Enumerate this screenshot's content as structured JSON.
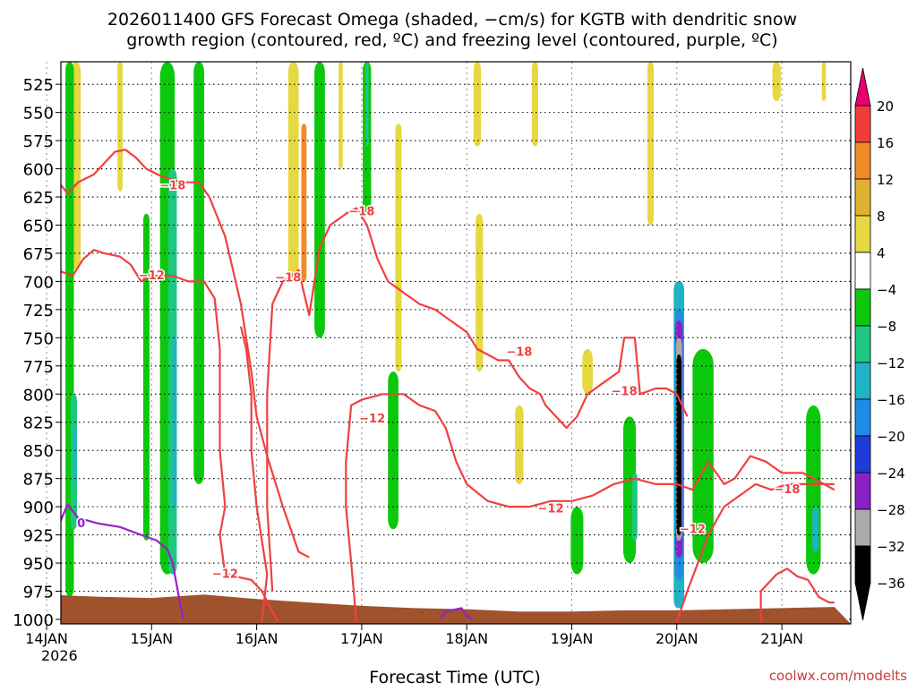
{
  "chart_data": {
    "type": "heatmap",
    "title_line1": "2026011400 GFS Forecast Omega (shaded, −cm/s) for KGTB with dendritic snow",
    "title_line2": "growth region (contoured, red, ºC) and freezing level (contoured, purple, ºC)",
    "xlabel": "Forecast Time (UTC)",
    "watermark": "coolwx.com/modelts",
    "x_ticks": [
      {
        "label": "14JAN",
        "day": 0
      },
      {
        "label": "15JAN",
        "day": 1
      },
      {
        "label": "16JAN",
        "day": 2
      },
      {
        "label": "17JAN",
        "day": 3
      },
      {
        "label": "18JAN",
        "day": 4
      },
      {
        "label": "19JAN",
        "day": 5
      },
      {
        "label": "20JAN",
        "day": 6
      },
      {
        "label": "21JAN",
        "day": 7
      }
    ],
    "x_year_label": "2026",
    "xlim": [
      0,
      7.5
    ],
    "y_ticks": [
      "525",
      "550",
      "575",
      "600",
      "625",
      "650",
      "675",
      "700",
      "725",
      "750",
      "775",
      "800",
      "825",
      "850",
      "875",
      "900",
      "925",
      "950",
      "975",
      "1000"
    ],
    "ylim": [
      505,
      1004
    ],
    "colorbar": {
      "labels": [
        "20",
        "16",
        "12",
        "8",
        "4",
        "−4",
        "−8",
        "−12",
        "−16",
        "−20",
        "−24",
        "−28",
        "−32",
        "−36"
      ],
      "colors": [
        "#e8006e",
        "#f23c3c",
        "#f28a28",
        "#e0b030",
        "#e6d840",
        "#ffffff",
        "#0cc80c",
        "#1ec882",
        "#1eb4c8",
        "#1e8ce6",
        "#1e3cdc",
        "#8c1ec8",
        "#aaaaaa",
        "#000000",
        "#000000"
      ],
      "top_arrow_color": "#e8006e",
      "bottom_arrow_color": "#000000"
    },
    "omega_blobs": [
      {
        "day": 0.28,
        "p0": 505,
        "p1": 690,
        "w": 0.09,
        "color": "#e6d840"
      },
      {
        "day": 0.22,
        "p0": 505,
        "p1": 980,
        "w": 0.08,
        "color": "#0cc80c"
      },
      {
        "day": 0.26,
        "p0": 800,
        "p1": 920,
        "w": 0.06,
        "color": "#1ec882"
      },
      {
        "day": 0.27,
        "p0": 830,
        "p1": 880,
        "w": 0.03,
        "color": "#1eb4c8"
      },
      {
        "day": 0.05,
        "p0": 730,
        "p1": 900,
        "w": 0.06,
        "color": "#0cc80c"
      },
      {
        "day": 1.15,
        "p0": 505,
        "p1": 960,
        "w": 0.14,
        "color": "#0cc80c"
      },
      {
        "day": 1.2,
        "p0": 600,
        "p1": 960,
        "w": 0.08,
        "color": "#1ec882"
      },
      {
        "day": 1.22,
        "p0": 750,
        "p1": 900,
        "w": 0.04,
        "color": "#1eb4c8"
      },
      {
        "day": 1.45,
        "p0": 505,
        "p1": 880,
        "w": 0.1,
        "color": "#0cc80c"
      },
      {
        "day": 0.95,
        "p0": 640,
        "p1": 930,
        "w": 0.06,
        "color": "#0cc80c"
      },
      {
        "day": 0.7,
        "p0": 505,
        "p1": 620,
        "w": 0.05,
        "color": "#e6d840"
      },
      {
        "day": 2.35,
        "p0": 505,
        "p1": 700,
        "w": 0.1,
        "color": "#e6d840"
      },
      {
        "day": 2.45,
        "p0": 560,
        "p1": 700,
        "w": 0.05,
        "color": "#f28a28"
      },
      {
        "day": 2.6,
        "p0": 505,
        "p1": 750,
        "w": 0.1,
        "color": "#0cc80c"
      },
      {
        "day": 2.8,
        "p0": 505,
        "p1": 600,
        "w": 0.04,
        "color": "#e6d840"
      },
      {
        "day": 3.05,
        "p0": 505,
        "p1": 640,
        "w": 0.08,
        "color": "#0cc80c"
      },
      {
        "day": 3.05,
        "p0": 505,
        "p1": 580,
        "w": 0.03,
        "color": "#1ec882"
      },
      {
        "day": 3.3,
        "p0": 780,
        "p1": 920,
        "w": 0.1,
        "color": "#0cc80c"
      },
      {
        "day": 3.35,
        "p0": 560,
        "p1": 780,
        "w": 0.06,
        "color": "#e6d840"
      },
      {
        "day": 4.1,
        "p0": 505,
        "p1": 580,
        "w": 0.07,
        "color": "#e6d840"
      },
      {
        "day": 4.12,
        "p0": 640,
        "p1": 780,
        "w": 0.07,
        "color": "#e6d840"
      },
      {
        "day": 4.5,
        "p0": 810,
        "p1": 880,
        "w": 0.08,
        "color": "#e6d840"
      },
      {
        "day": 4.65,
        "p0": 505,
        "p1": 580,
        "w": 0.06,
        "color": "#e6d840"
      },
      {
        "day": 5.15,
        "p0": 760,
        "p1": 800,
        "w": 0.1,
        "color": "#e6d840"
      },
      {
        "day": 5.05,
        "p0": 900,
        "p1": 960,
        "w": 0.12,
        "color": "#0cc80c"
      },
      {
        "day": 5.55,
        "p0": 820,
        "p1": 950,
        "w": 0.12,
        "color": "#0cc80c"
      },
      {
        "day": 5.6,
        "p0": 870,
        "p1": 930,
        "w": 0.05,
        "color": "#1ec882"
      },
      {
        "day": 5.75,
        "p0": 505,
        "p1": 650,
        "w": 0.06,
        "color": "#e6d840"
      },
      {
        "day": 6.25,
        "p0": 760,
        "p1": 950,
        "w": 0.2,
        "color": "#0cc80c"
      },
      {
        "day": 6.95,
        "p0": 505,
        "p1": 540,
        "w": 0.08,
        "color": "#e6d840"
      },
      {
        "day": 7.3,
        "p0": 810,
        "p1": 960,
        "w": 0.14,
        "color": "#0cc80c"
      },
      {
        "day": 7.32,
        "p0": 900,
        "p1": 940,
        "w": 0.06,
        "color": "#1eb4c8"
      },
      {
        "day": 7.4,
        "p0": 505,
        "p1": 540,
        "w": 0.04,
        "color": "#e6d840"
      }
    ],
    "updraft_column": {
      "day": 6.02,
      "layers": [
        {
          "p0": 700,
          "p1": 990,
          "w": 0.1,
          "color": "#1eb4c8"
        },
        {
          "p0": 725,
          "p1": 965,
          "w": 0.08,
          "color": "#1e8ce6"
        },
        {
          "p0": 735,
          "p1": 945,
          "w": 0.07,
          "color": "#8c1ec8"
        },
        {
          "p0": 750,
          "p1": 930,
          "w": 0.06,
          "color": "#aaaaaa"
        },
        {
          "p0": 765,
          "p1": 925,
          "w": 0.05,
          "color": "#000000"
        }
      ]
    },
    "contour_minus18_top": [
      [
        0,
        595
      ],
      [
        0.1,
        610
      ],
      [
        0.2,
        622
      ],
      [
        0.3,
        612
      ],
      [
        0.45,
        605
      ],
      [
        0.55,
        595
      ],
      [
        0.65,
        585
      ],
      [
        0.75,
        583
      ],
      [
        0.85,
        590
      ],
      [
        0.95,
        600
      ],
      [
        1.1,
        607
      ],
      [
        1.3,
        612
      ],
      [
        1.45,
        612
      ],
      [
        1.55,
        625
      ],
      [
        1.7,
        660
      ],
      [
        1.85,
        720
      ],
      [
        1.95,
        780
      ],
      [
        2.0,
        820
      ],
      [
        2.1,
        855
      ],
      [
        2.25,
        900
      ],
      [
        2.4,
        940
      ],
      [
        2.5,
        945
      ]
    ],
    "contour_minus18_left_inner": [
      [
        2.05,
        1002
      ],
      [
        2.1,
        960
      ],
      [
        2.0,
        900
      ],
      [
        1.95,
        850
      ],
      [
        1.95,
        800
      ],
      [
        1.9,
        760
      ],
      [
        1.85,
        740
      ]
    ],
    "contour_minus18_mid": [
      [
        2.15,
        975
      ],
      [
        2.1,
        900
      ],
      [
        2.1,
        800
      ],
      [
        2.15,
        720
      ],
      [
        2.25,
        700
      ],
      [
        2.4,
        690
      ],
      [
        2.5,
        730
      ],
      [
        2.55,
        700
      ],
      [
        2.6,
        670
      ],
      [
        2.7,
        650
      ],
      [
        2.85,
        640
      ],
      [
        2.95,
        635
      ],
      [
        3.05,
        650
      ],
      [
        3.15,
        680
      ],
      [
        3.25,
        700
      ],
      [
        3.4,
        710
      ],
      [
        3.55,
        720
      ],
      [
        3.7,
        725
      ],
      [
        3.85,
        735
      ],
      [
        4.0,
        745
      ],
      [
        4.1,
        760
      ],
      [
        4.3,
        770
      ],
      [
        4.4,
        770
      ],
      [
        4.5,
        785
      ],
      [
        4.6,
        795
      ],
      [
        4.7,
        800
      ],
      [
        4.75,
        810
      ],
      [
        4.85,
        820
      ],
      [
        4.95,
        830
      ],
      [
        5.05,
        820
      ],
      [
        5.15,
        800
      ],
      [
        5.3,
        790
      ],
      [
        5.45,
        780
      ],
      [
        5.5,
        750
      ],
      [
        5.6,
        750
      ],
      [
        5.65,
        800
      ],
      [
        5.8,
        795
      ],
      [
        5.9,
        795
      ],
      [
        6.0,
        800
      ],
      [
        6.1,
        820
      ]
    ],
    "contour_minus12_top": [
      [
        0,
        670
      ],
      [
        0.1,
        690
      ],
      [
        0.25,
        695
      ],
      [
        0.35,
        680
      ],
      [
        0.45,
        672
      ],
      [
        0.55,
        675
      ],
      [
        0.7,
        678
      ],
      [
        0.8,
        685
      ],
      [
        0.9,
        700
      ],
      [
        1.0,
        695
      ],
      [
        1.2,
        695
      ],
      [
        1.35,
        700
      ],
      [
        1.5,
        700
      ],
      [
        1.6,
        715
      ],
      [
        1.65,
        760
      ],
      [
        1.65,
        850
      ],
      [
        1.7,
        900
      ],
      [
        1.65,
        925
      ],
      [
        1.7,
        960
      ],
      [
        1.95,
        965
      ],
      [
        2.05,
        975
      ],
      [
        2.2,
        1002
      ]
    ],
    "contour_minus12_low": [
      [
        2.95,
        1002
      ],
      [
        2.9,
        950
      ],
      [
        2.85,
        900
      ],
      [
        2.85,
        860
      ],
      [
        2.9,
        810
      ],
      [
        3.0,
        805
      ],
      [
        3.2,
        800
      ],
      [
        3.4,
        800
      ],
      [
        3.55,
        810
      ],
      [
        3.7,
        815
      ],
      [
        3.8,
        830
      ],
      [
        3.9,
        860
      ],
      [
        4.0,
        880
      ],
      [
        4.2,
        895
      ],
      [
        4.4,
        900
      ],
      [
        4.6,
        900
      ],
      [
        4.8,
        895
      ],
      [
        5.0,
        895
      ],
      [
        5.2,
        890
      ],
      [
        5.4,
        880
      ],
      [
        5.6,
        875
      ],
      [
        5.8,
        880
      ],
      [
        6.0,
        880
      ],
      [
        6.15,
        885
      ],
      [
        6.3,
        860
      ],
      [
        6.45,
        880
      ],
      [
        6.55,
        875
      ],
      [
        6.7,
        855
      ],
      [
        6.85,
        860
      ],
      [
        7.0,
        870
      ],
      [
        7.2,
        870
      ],
      [
        7.4,
        880
      ],
      [
        7.5,
        885
      ]
    ],
    "contour_minus12_low2": [
      [
        6.0,
        1002
      ],
      [
        6.1,
        975
      ],
      [
        6.2,
        950
      ],
      [
        6.3,
        925
      ],
      [
        6.45,
        900
      ],
      [
        6.6,
        890
      ],
      [
        6.75,
        880
      ],
      [
        6.9,
        885
      ],
      [
        7.05,
        880
      ],
      [
        7.25,
        880
      ],
      [
        7.5,
        880
      ]
    ],
    "contour_low_bottom": [
      [
        6.8,
        1002
      ],
      [
        6.8,
        975
      ],
      [
        6.95,
        960
      ],
      [
        7.05,
        955
      ],
      [
        7.15,
        962
      ],
      [
        7.25,
        965
      ],
      [
        7.35,
        980
      ],
      [
        7.45,
        985
      ],
      [
        7.5,
        985
      ]
    ],
    "contour_freezing": [
      [
        0,
        960
      ],
      [
        0.05,
        945
      ],
      [
        0.1,
        920
      ],
      [
        0.2,
        898
      ],
      [
        0.3,
        910
      ],
      [
        0.5,
        915
      ],
      [
        0.7,
        918
      ],
      [
        0.9,
        925
      ],
      [
        1.05,
        930
      ],
      [
        1.15,
        938
      ],
      [
        1.2,
        950
      ],
      [
        1.25,
        975
      ],
      [
        1.3,
        1000
      ]
    ],
    "contour_freezing_small": [
      [
        3.75,
        1000
      ],
      [
        3.8,
        993
      ],
      [
        3.95,
        990
      ],
      [
        4.0,
        997
      ],
      [
        4.05,
        1000
      ]
    ],
    "contour_labels": [
      {
        "text": "−18",
        "day": 1.2,
        "p": 615
      },
      {
        "text": "−12",
        "day": 1.0,
        "p": 695
      },
      {
        "text": "−18",
        "day": 2.3,
        "p": 697
      },
      {
        "text": "−18",
        "day": 3.0,
        "p": 638
      },
      {
        "text": "−12",
        "day": 3.1,
        "p": 822
      },
      {
        "text": "−18",
        "day": 4.5,
        "p": 763
      },
      {
        "text": "−18",
        "day": 5.5,
        "p": 798
      },
      {
        "text": "−12",
        "day": 4.8,
        "p": 902
      },
      {
        "text": "−12",
        "day": 6.15,
        "p": 920
      },
      {
        "text": "−18",
        "day": 7.05,
        "p": 885
      },
      {
        "text": "−12",
        "day": 1.7,
        "p": 960
      },
      {
        "text": "0",
        "day": 0.33,
        "p": 915
      }
    ],
    "terrain_color": "#a0522d",
    "contour_red_color": "#f04040",
    "contour_purple_color": "#9a20c8"
  }
}
